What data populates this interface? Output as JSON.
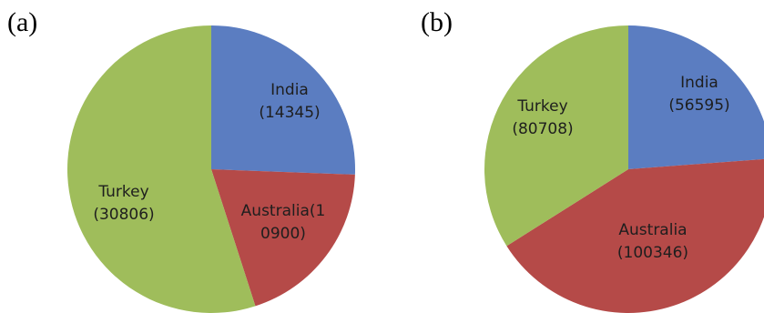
{
  "chart_data": [
    {
      "type": "pie",
      "panel_label": "(a)",
      "start_angle_deg": 0,
      "direction": "clockwise",
      "slices": [
        {
          "key": "india",
          "label_lines": [
            "India",
            "(14345)"
          ],
          "value": 14345,
          "color": "#5b7dc1"
        },
        {
          "key": "australia",
          "label_lines": [
            "Australia(1",
            "0900)"
          ],
          "value": 10900,
          "color": "#b54a48"
        },
        {
          "key": "turkey",
          "label_lines": [
            "Turkey",
            "(30806)"
          ],
          "value": 30806,
          "color": "#9fbd5b"
        }
      ]
    },
    {
      "type": "pie",
      "panel_label": "(b)",
      "start_angle_deg": 0,
      "direction": "clockwise",
      "slices": [
        {
          "key": "india",
          "label_lines": [
            "India",
            "(56595)"
          ],
          "value": 56595,
          "color": "#5b7dc1"
        },
        {
          "key": "australia",
          "label_lines": [
            "Australia",
            "(100346)"
          ],
          "value": 100346,
          "color": "#b54a48"
        },
        {
          "key": "turkey",
          "label_lines": [
            "Turkey",
            "(80708)"
          ],
          "value": 80708,
          "color": "#9fbd5b"
        }
      ]
    }
  ]
}
